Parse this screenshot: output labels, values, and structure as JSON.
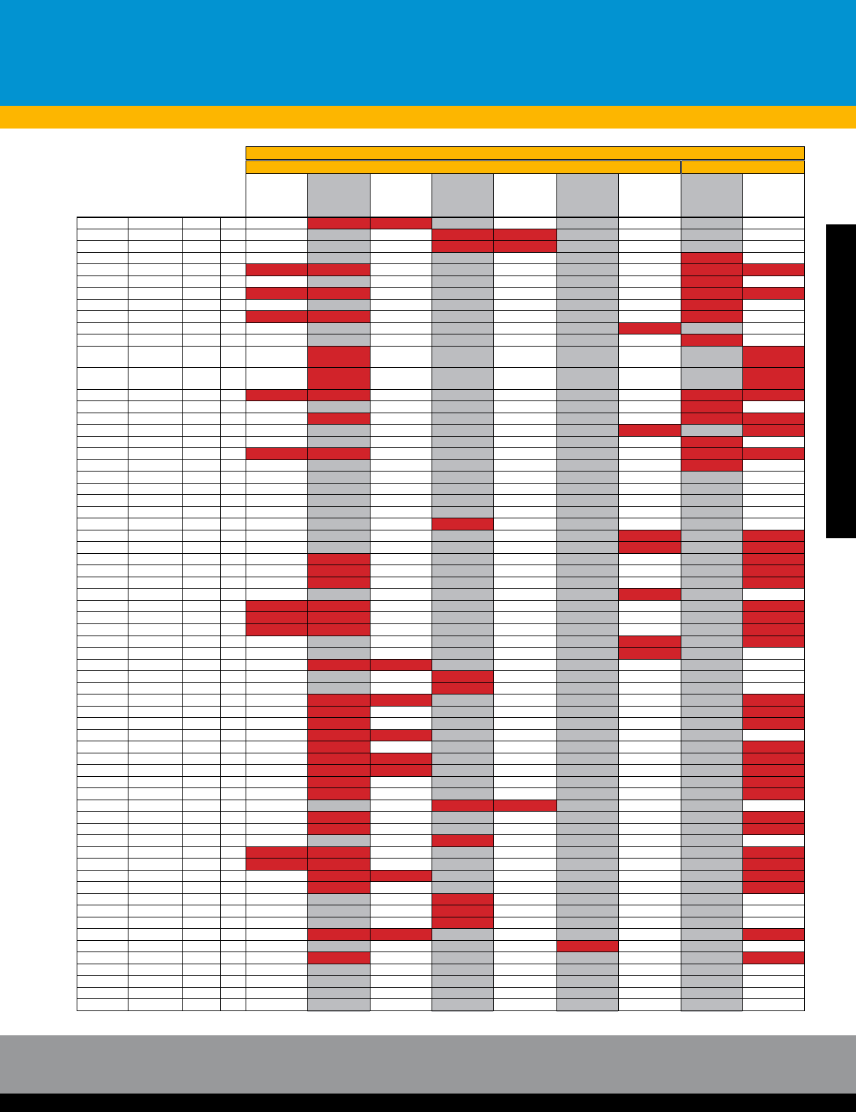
{
  "colors": {
    "header_blue": "#0293d1",
    "accent_yellow": "#fdb600",
    "shade_grey": "#bcbdc0",
    "flag_red": "#d1232a",
    "footer_grey": "#98999b",
    "black": "#000000",
    "white": "#ffffff"
  },
  "table": {
    "column_header_shading": [
      "white",
      "white",
      "white",
      "white",
      "white",
      "grey",
      "white",
      "grey",
      "white",
      "grey",
      "white",
      "grey",
      "white"
    ],
    "column_base_shading": [
      "white",
      "white",
      "white",
      "white",
      "white",
      "grey",
      "white",
      "grey",
      "white",
      "grey",
      "white",
      "grey",
      "white"
    ],
    "tall_rows": [
      11,
      12
    ],
    "row_count": 66,
    "flag_state": "flagged",
    "red_cells": {
      "0": [
        5,
        6
      ],
      "1": [
        7,
        8
      ],
      "2": [
        7,
        8
      ],
      "3": [
        11
      ],
      "4": [
        4,
        5,
        11,
        12
      ],
      "5": [
        11
      ],
      "6": [
        4,
        5,
        11,
        12
      ],
      "7": [
        11
      ],
      "8": [
        4,
        5,
        11
      ],
      "9": [
        10
      ],
      "10": [
        11
      ],
      "11": [
        5,
        12
      ],
      "12": [
        5,
        12
      ],
      "13": [
        4,
        5,
        11,
        12
      ],
      "14": [
        11
      ],
      "15": [
        5,
        11,
        12
      ],
      "16": [
        10,
        12
      ],
      "17": [
        11
      ],
      "18": [
        4,
        5,
        11,
        12
      ],
      "19": [
        11
      ],
      "24": [
        7
      ],
      "25": [
        10,
        12
      ],
      "26": [
        10,
        12
      ],
      "27": [
        5,
        12
      ],
      "28": [
        5,
        12
      ],
      "29": [
        5,
        12
      ],
      "30": [
        10
      ],
      "31": [
        4,
        5,
        12
      ],
      "32": [
        4,
        5,
        12
      ],
      "33": [
        4,
        5,
        12
      ],
      "34": [
        10,
        12
      ],
      "35": [
        10
      ],
      "36": [
        5,
        6
      ],
      "37": [
        7
      ],
      "38": [
        7
      ],
      "39": [
        5,
        6,
        12
      ],
      "40": [
        5,
        12
      ],
      "41": [
        5,
        12
      ],
      "42": [
        5,
        6
      ],
      "43": [
        5,
        12
      ],
      "44": [
        5,
        6,
        12
      ],
      "45": [
        5,
        6,
        12
      ],
      "46": [
        5,
        12
      ],
      "47": [
        5,
        12
      ],
      "48": [
        7,
        8
      ],
      "49": [
        5,
        12
      ],
      "50": [
        5,
        12
      ],
      "51": [
        7
      ],
      "52": [
        4,
        5,
        12
      ],
      "53": [
        4,
        5,
        12
      ],
      "54": [
        5,
        6,
        12
      ],
      "55": [
        5,
        12
      ],
      "56": [
        7
      ],
      "57": [
        7
      ],
      "58": [
        7
      ],
      "59": [
        5,
        6,
        12
      ],
      "60": [
        9
      ],
      "61": [
        5,
        12
      ]
    }
  }
}
